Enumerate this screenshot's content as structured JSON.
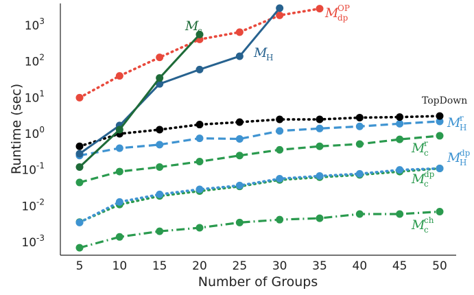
{
  "chart_data": {
    "type": "line",
    "xlabel": "Number of Groups",
    "ylabel": "Runtime (sec)",
    "x": [
      5,
      10,
      15,
      20,
      25,
      30,
      35,
      40,
      45,
      50
    ],
    "xticks": [
      "5",
      "10",
      "15",
      "20",
      "25",
      "30",
      "35",
      "40",
      "45",
      "50"
    ],
    "yscale": "log",
    "ylim": [
      0.0005,
      5000
    ],
    "yticks": [
      {
        "base": "10",
        "exp": "-3",
        "value": 0.001
      },
      {
        "base": "10",
        "exp": "-2",
        "value": 0.01
      },
      {
        "base": "10",
        "exp": "-1",
        "value": 0.1
      },
      {
        "base": "10",
        "exp": "0",
        "value": 1
      },
      {
        "base": "10",
        "exp": "1",
        "value": 10
      },
      {
        "base": "10",
        "exp": "2",
        "value": 100
      },
      {
        "base": "10",
        "exp": "3",
        "value": 1000
      }
    ],
    "grid": false,
    "series": [
      {
        "key": "dp_op",
        "label_main": "M",
        "label_sub": "dp",
        "label_sup": "OP",
        "color": "#e8493c",
        "dash": "dotted",
        "x": [
          5,
          10,
          15,
          20,
          25,
          30,
          35
        ],
        "values": [
          10,
          40,
          130,
          410,
          650,
          1900,
          2900
        ]
      },
      {
        "key": "c",
        "label_main": "M",
        "label_sub": "c",
        "label_sup": "",
        "color": "#1e6b38",
        "dash": "solid",
        "x": [
          5,
          10,
          15,
          20
        ],
        "values": [
          0.12,
          1.3,
          35,
          560
        ]
      },
      {
        "key": "h",
        "label_main": "M",
        "label_sub": "H",
        "label_sup": "",
        "color": "#27628f",
        "dash": "solid",
        "x": [
          5,
          10,
          15,
          20,
          25,
          30
        ],
        "values": [
          0.28,
          1.7,
          24,
          60,
          140,
          3000
        ]
      },
      {
        "key": "topdown",
        "label_main": "TopDown",
        "label_sub": "",
        "label_sup": "",
        "color": "#000000",
        "dash": "dotted",
        "x": [
          5,
          10,
          15,
          20,
          25,
          30,
          35,
          40,
          45,
          50
        ],
        "values": [
          0.45,
          1.0,
          1.3,
          1.8,
          2.1,
          2.5,
          2.5,
          2.8,
          2.9,
          3.1
        ]
      },
      {
        "key": "h_r",
        "label_main": "M",
        "label_sub": "H",
        "label_sup": "r",
        "color": "#3e93d1",
        "dash": "dashed",
        "x": [
          5,
          10,
          15,
          20,
          25,
          30,
          35,
          40,
          45,
          50
        ],
        "values": [
          0.25,
          0.4,
          0.5,
          0.75,
          0.72,
          1.2,
          1.4,
          1.6,
          1.9,
          2.2
        ]
      },
      {
        "key": "c_r",
        "label_main": "M",
        "label_sub": "c",
        "label_sup": "r",
        "color": "#2a9a4e",
        "dash": "dashed",
        "x": [
          5,
          10,
          15,
          20,
          25,
          30,
          35,
          40,
          45,
          50
        ],
        "values": [
          0.045,
          0.09,
          0.12,
          0.17,
          0.25,
          0.36,
          0.45,
          0.52,
          0.7,
          0.88
        ]
      },
      {
        "key": "h_dp",
        "label_main": "M",
        "label_sub": "H",
        "label_sup": "dp",
        "color": "#3e93d1",
        "dash": "dotted",
        "x": [
          5,
          10,
          15,
          20,
          25,
          30,
          35,
          40,
          45,
          50
        ],
        "values": [
          0.0035,
          0.013,
          0.021,
          0.029,
          0.037,
          0.057,
          0.068,
          0.078,
          0.1,
          0.11
        ]
      },
      {
        "key": "c_dp",
        "label_main": "M",
        "label_sub": "c",
        "label_sup": "dp",
        "color": "#2a9a4e",
        "dash": "dotted",
        "x": [
          5,
          10,
          15,
          20,
          25,
          30,
          35,
          40,
          45,
          50
        ],
        "values": [
          0.0036,
          0.011,
          0.019,
          0.026,
          0.035,
          0.053,
          0.063,
          0.073,
          0.09,
          0.11
        ]
      },
      {
        "key": "c_ch",
        "label_main": "M",
        "label_sub": "c",
        "label_sup": "ch",
        "color": "#2a9a4e",
        "dash": "dashdot",
        "x": [
          5,
          10,
          15,
          20,
          25,
          30,
          35,
          40,
          45,
          50
        ],
        "values": [
          0.0007,
          0.0014,
          0.002,
          0.0025,
          0.0035,
          0.0042,
          0.0046,
          0.006,
          0.006,
          0.007
        ]
      }
    ]
  }
}
